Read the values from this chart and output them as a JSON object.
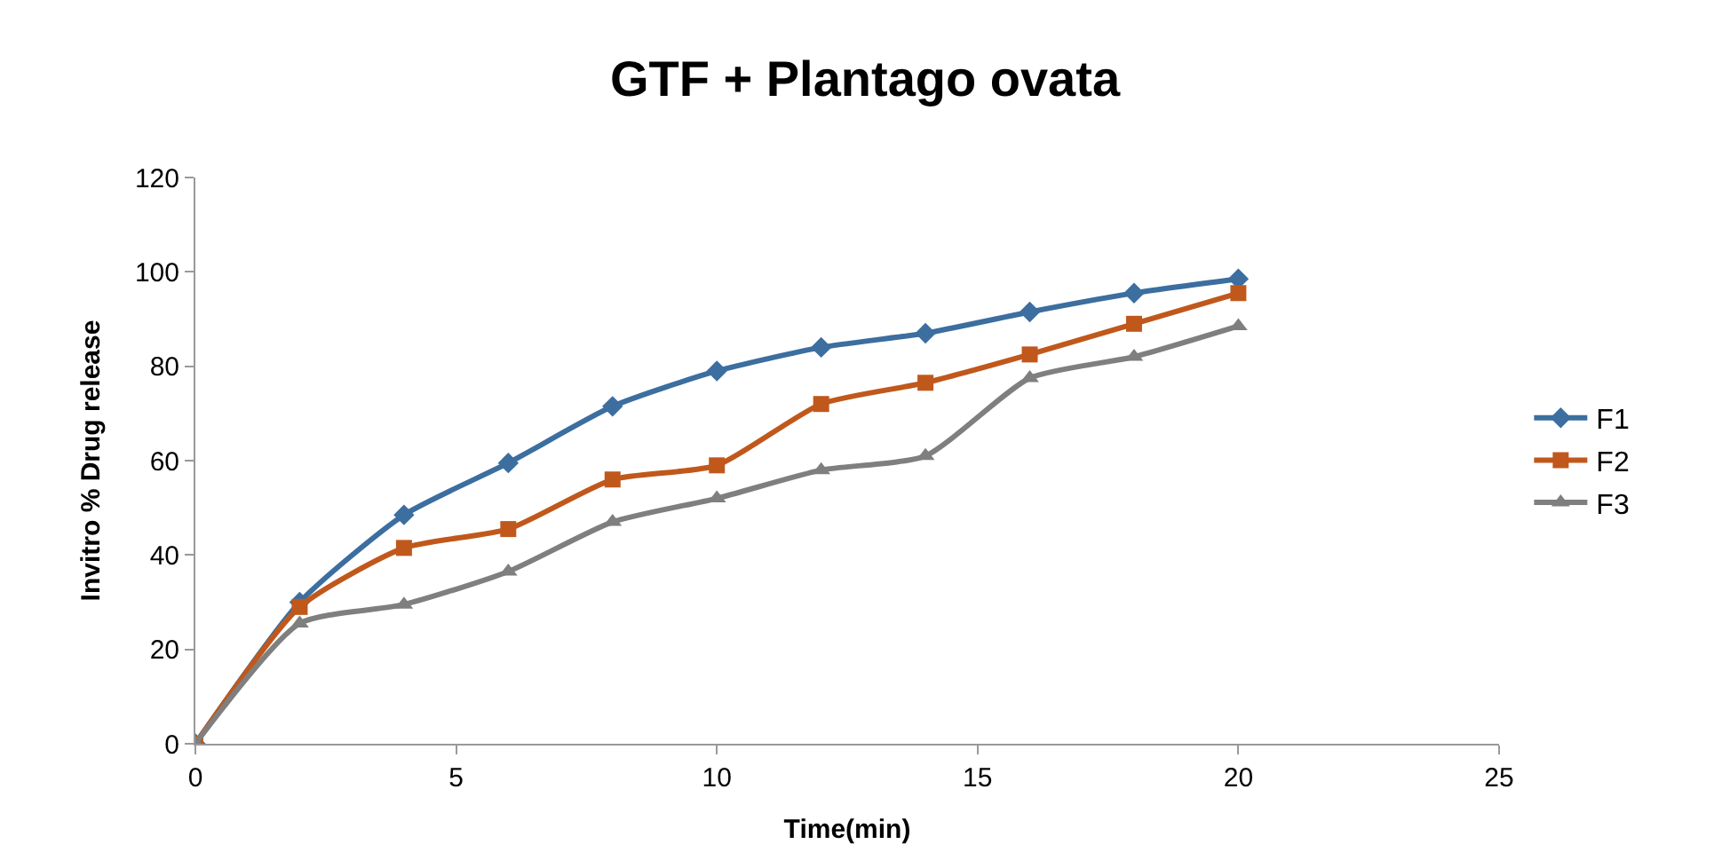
{
  "chart_data": {
    "type": "line",
    "title": "GTF + Plantago ovata",
    "xlabel": "Time(min)",
    "ylabel": "Invitro % Drug release",
    "x": [
      0,
      2,
      4,
      6,
      8,
      10,
      12,
      14,
      16,
      18,
      20
    ],
    "xlim": [
      0,
      25
    ],
    "xticks": [
      0,
      5,
      10,
      15,
      20,
      25
    ],
    "ylim": [
      0,
      120
    ],
    "yticks": [
      0,
      20,
      40,
      60,
      80,
      100,
      120
    ],
    "legend": "right",
    "series": [
      {
        "name": "F1",
        "color": "#3c6e9f",
        "marker": "diamond",
        "values": [
          0,
          30,
          48.5,
          59.5,
          71.5,
          79,
          84,
          87,
          91.5,
          95.5,
          98.5
        ]
      },
      {
        "name": "F2",
        "color": "#c0581c",
        "marker": "square",
        "values": [
          0,
          29,
          41.5,
          45.5,
          56,
          59,
          72,
          76.5,
          82.5,
          89,
          95.5
        ]
      },
      {
        "name": "F3",
        "color": "#7f7f7f",
        "marker": "triangle",
        "values": [
          0,
          25.5,
          29.5,
          36.5,
          47,
          52,
          58,
          61,
          77.5,
          82,
          88.5
        ]
      }
    ]
  }
}
